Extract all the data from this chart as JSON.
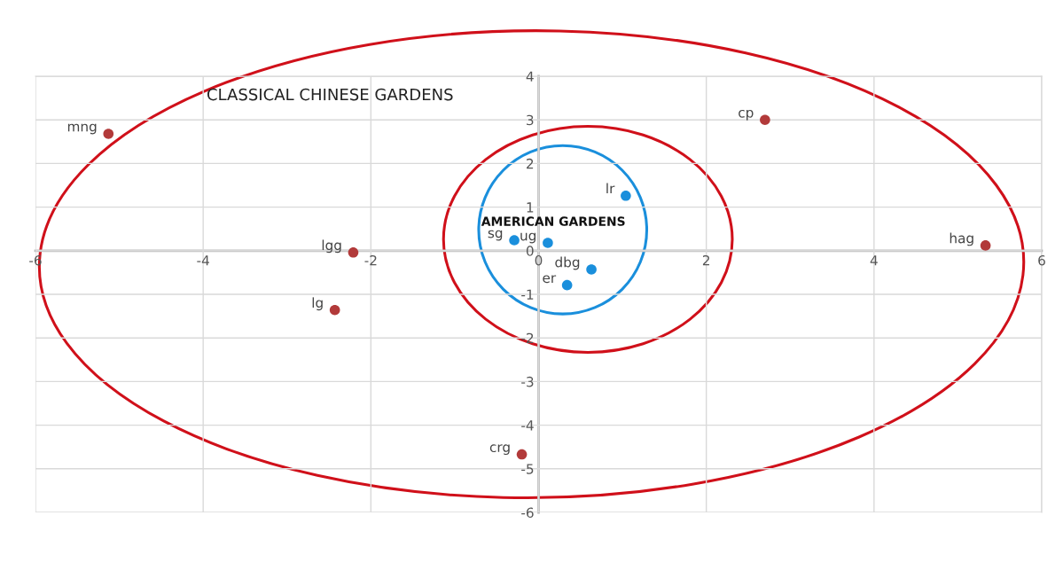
{
  "chart_data": {
    "type": "scatter",
    "series": [
      {
        "color": "#b23a3a",
        "x": [
          -5.13,
          -2.21,
          -2.43,
          -0.2,
          2.7,
          5.33
        ],
        "values": [
          2.68,
          -0.04,
          -1.36,
          -4.67,
          3.0,
          0.12
        ]
      },
      {
        "color": "#1a8fdc",
        "x": [
          1.04,
          -0.29,
          0.11,
          0.63,
          0.34
        ],
        "values": [
          1.26,
          0.24,
          0.18,
          -0.43,
          -0.79
        ]
      }
    ],
    "xlim": [
      -6,
      6
    ],
    "ylim": [
      -6,
      4
    ],
    "xticks": [
      -6,
      -4,
      -2,
      0,
      2,
      4,
      6
    ],
    "yticks": [
      -6,
      -5,
      -4,
      -3,
      -2,
      -1,
      0,
      1,
      2,
      3,
      4
    ],
    "grid": true,
    "marker": "circle",
    "annotations": [
      "CLASSICAL CHINESE GARDENS",
      "AMERICAN GARDENS",
      {
        "text": "mng",
        "x": -5.13,
        "y": 2.68
      },
      {
        "text": "lgg",
        "x": -2.21,
        "y": -0.04
      },
      {
        "text": "lg",
        "x": -2.43,
        "y": -1.36
      },
      {
        "text": "crg",
        "x": -0.2,
        "y": -4.67
      },
      {
        "text": "cp",
        "x": 2.7,
        "y": 3.0
      },
      {
        "text": "hag",
        "x": 5.33,
        "y": 0.12
      },
      {
        "text": "lr",
        "x": 1.04,
        "y": 1.26
      },
      {
        "text": "sg",
        "x": -0.29,
        "y": 0.24
      },
      {
        "text": "ug",
        "x": 0.11,
        "y": 0.18
      },
      {
        "text": "dbg",
        "x": 0.63,
        "y": -0.43
      },
      {
        "text": "er",
        "x": 0.34,
        "y": -0.79
      }
    ]
  }
}
